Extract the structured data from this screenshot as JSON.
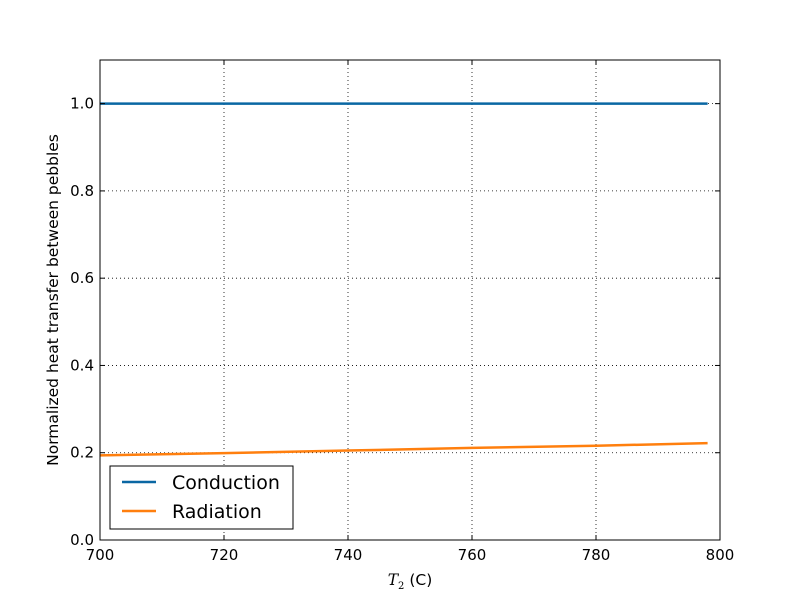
{
  "chart_data": {
    "type": "line",
    "title": "",
    "xlabel_symbol": "T",
    "xlabel_subscript": "2",
    "xlabel_unit": "(C)",
    "ylabel": "Normalized heat transfer between pebbles",
    "xlim": [
      700,
      800
    ],
    "ylim": [
      0.0,
      1.1
    ],
    "xticks": [
      700,
      720,
      740,
      760,
      780,
      800
    ],
    "xtick_labels": [
      "700",
      "720",
      "740",
      "760",
      "780",
      "800"
    ],
    "yticks": [
      0.0,
      0.2,
      0.4,
      0.6,
      0.8,
      1.0
    ],
    "ytick_labels": [
      "0.0",
      "0.2",
      "0.4",
      "0.6",
      "0.8",
      "1.0"
    ],
    "grid": true,
    "legend_position": "lower-left",
    "series": [
      {
        "name": "Conduction",
        "color": "#0a67a3",
        "x": [
          700,
          720,
          740,
          760,
          780,
          798
        ],
        "y": [
          1.0,
          1.0,
          1.0,
          1.0,
          1.0,
          1.0
        ]
      },
      {
        "name": "Radiation",
        "color": "#ff7f0e",
        "x": [
          700,
          720,
          740,
          760,
          780,
          798
        ],
        "y": [
          0.194,
          0.199,
          0.205,
          0.211,
          0.216,
          0.222
        ]
      }
    ]
  }
}
